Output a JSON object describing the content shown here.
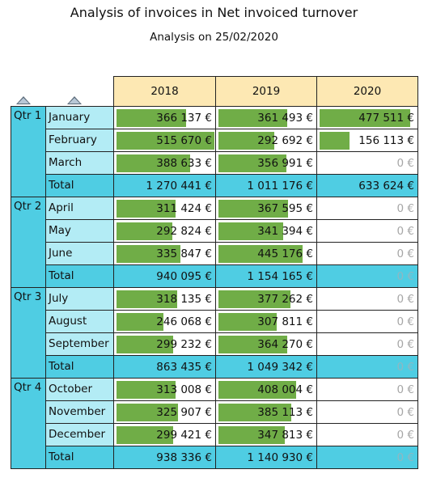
{
  "title": "Analysis of invoices in Net invoiced turnover",
  "subtitle": "Analysis on 25/02/2020",
  "icons": [
    "sort-ascending-icon",
    "sort-ascending-icon"
  ],
  "colors": {
    "header": "#fde8b3",
    "quarter": "#4fcde3",
    "month": "#b3ecf5",
    "bar": "#70ad47"
  },
  "years": [
    "2018",
    "2019",
    "2020"
  ],
  "bar_max": 515670,
  "total_label": "Total",
  "quarters": [
    {
      "label": "Qtr 1",
      "months": [
        {
          "name": "January",
          "values": [
            366137,
            361493,
            477511
          ],
          "display": [
            "366 137 €",
            "361 493 €",
            "477 511 €"
          ]
        },
        {
          "name": "February",
          "values": [
            515670,
            292692,
            156113
          ],
          "display": [
            "515 670 €",
            "292 692 €",
            "156 113 €"
          ]
        },
        {
          "name": "March",
          "values": [
            388633,
            356991,
            0
          ],
          "display": [
            "388 633 €",
            "356 991 €",
            "0 €"
          ]
        }
      ],
      "total": [
        "1 270 441 €",
        "1 011 176 €",
        "633 624 €"
      ]
    },
    {
      "label": "Qtr 2",
      "months": [
        {
          "name": "April",
          "values": [
            311424,
            367595,
            0
          ],
          "display": [
            "311 424 €",
            "367 595 €",
            "0 €"
          ]
        },
        {
          "name": "May",
          "values": [
            292824,
            341394,
            0
          ],
          "display": [
            "292 824 €",
            "341 394 €",
            "0 €"
          ]
        },
        {
          "name": "June",
          "values": [
            335847,
            445176,
            0
          ],
          "display": [
            "335 847 €",
            "445 176 €",
            "0 €"
          ]
        }
      ],
      "total": [
        "940 095 €",
        "1 154 165 €",
        "0 €"
      ]
    },
    {
      "label": "Qtr 3",
      "months": [
        {
          "name": "July",
          "values": [
            318135,
            377262,
            0
          ],
          "display": [
            "318 135 €",
            "377 262 €",
            "0 €"
          ]
        },
        {
          "name": "August",
          "values": [
            246068,
            307811,
            0
          ],
          "display": [
            "246 068 €",
            "307 811 €",
            "0 €"
          ]
        },
        {
          "name": "September",
          "values": [
            299232,
            364270,
            0
          ],
          "display": [
            "299 232 €",
            "364 270 €",
            "0 €"
          ]
        }
      ],
      "total": [
        "863 435 €",
        "1 049 342 €",
        "0 €"
      ]
    },
    {
      "label": "Qtr 4",
      "months": [
        {
          "name": "October",
          "values": [
            313008,
            408004,
            0
          ],
          "display": [
            "313 008 €",
            "408 004 €",
            "0 €"
          ]
        },
        {
          "name": "November",
          "values": [
            325907,
            385113,
            0
          ],
          "display": [
            "325 907 €",
            "385 113 €",
            "0 €"
          ]
        },
        {
          "name": "December",
          "values": [
            299421,
            347813,
            0
          ],
          "display": [
            "299 421 €",
            "347 813 €",
            "0 €"
          ]
        }
      ],
      "total": [
        "938 336 €",
        "1 140 930 €",
        "0 €"
      ]
    }
  ]
}
